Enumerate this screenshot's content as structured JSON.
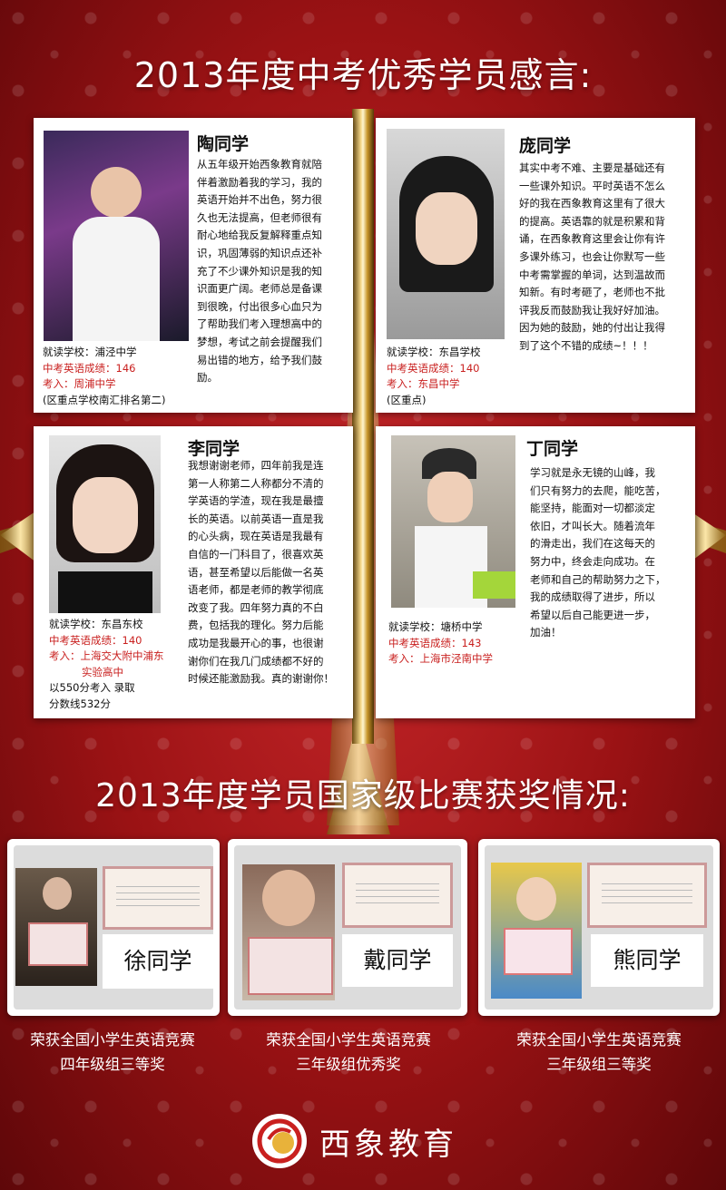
{
  "titles": {
    "testimonials": "2013年度中考优秀学员感言:",
    "awards": "2013年度学员国家级比赛获奖情况:"
  },
  "testimonials": [
    {
      "name": "陶同学",
      "text": [
        "从五年级开始西象教育就陪",
        "伴着激励着我的学习，我的",
        "英语开始并不出色，努力很",
        "久也无法提高，但老师很有",
        "耐心地给我反复解释重点知",
        "识，巩固薄弱的知识点还补",
        "充了不少课外知识是我的知",
        "识面更广阔。老师总是备课",
        "到很晚，付出很多心血只为",
        "了帮助我们考入理想高中的",
        "梦想，考试之前会提醒我们",
        "易出错的地方，给予我们鼓",
        "励。"
      ],
      "school": "就读学校：浦泾中学",
      "score": "中考英语成绩：146",
      "admit": "考入：周浦中学",
      "note": "(区重点学校南汇排名第二)"
    },
    {
      "name": "庞同学",
      "text": [
        "其实中考不难、主要是基础还有",
        "一些课外知识。平时英语不怎么",
        "好的我在西象教育这里有了很大",
        "的提高。英语靠的就是积累和背",
        "诵，在西象教育这里会让你有许",
        "多课外练习，也会让你默写一些",
        "中考需掌握的单词，达到温故而",
        "知新。有时考砸了，老师也不批",
        "评我反而鼓励我让我好好加油。",
        "因为她的鼓励，她的付出让我得",
        "到了这个不错的成绩~！！！"
      ],
      "school": "就读学校：东昌学校",
      "score": "中考英语成绩：140",
      "admit": "考入：东昌中学",
      "note": "(区重点)"
    },
    {
      "name": "李同学",
      "text": [
        "我想谢谢老师，四年前我是连",
        "第一人称第二人称都分不清的",
        "学英语的学渣，现在我是最擅",
        "长的英语。以前英语一直是我",
        "的心头病，现在英语是我最有",
        "自信的一门科目了，很喜欢英",
        "语，甚至希望以后能做一名英",
        "语老师，都是老师的教学彻底",
        "改变了我。四年努力真的不白",
        "费，包括我的理化。努力后能",
        "成功是我最开心的事，也很谢",
        "谢你们在我几门成绩都不好的",
        "时候还能激励我。真的谢谢你！"
      ],
      "school": "就读学校：东昌东校",
      "score": "中考英语成绩：140",
      "admit": "考入：上海交大附中浦东",
      "admit2": "实验高中",
      "note": "以550分考入 录取",
      "note2": "分数线532分"
    },
    {
      "name": "丁同学",
      "text": [
        "学习就是永无镜的山峰，我",
        "们只有努力的去爬，能吃苦，",
        "能坚持，能面对一切都淡定",
        "依旧，才叫长大。随着流年",
        "的滑走出，我们在这每天的",
        "努力中，终会走向成功。在",
        "老师和自己的帮助努力之下，",
        "我的成绩取得了进步，所以",
        "希望以后自己能更进一步，",
        "加油！"
      ],
      "school": "就读学校：塘桥中学",
      "score": "中考英语成绩：143",
      "admit": "考入：上海市泾南中学"
    }
  ],
  "awards": [
    {
      "name": "徐同学",
      "line1": "荣获全国小学生英语竞赛",
      "line2": "四年级组三等奖"
    },
    {
      "name": "戴同学",
      "line1": "荣获全国小学生英语竞赛",
      "line2": "三年级组优秀奖"
    },
    {
      "name": "熊同学",
      "line1": "荣获全国小学生英语竞赛",
      "line2": "三年级组三等奖"
    }
  ],
  "logo": {
    "text": "西象教育",
    "icon": "xixiang-logo-icon"
  },
  "colors": {
    "background": "#b01a1c",
    "red_text": "#c9201f",
    "gold": "#d9b35a"
  }
}
